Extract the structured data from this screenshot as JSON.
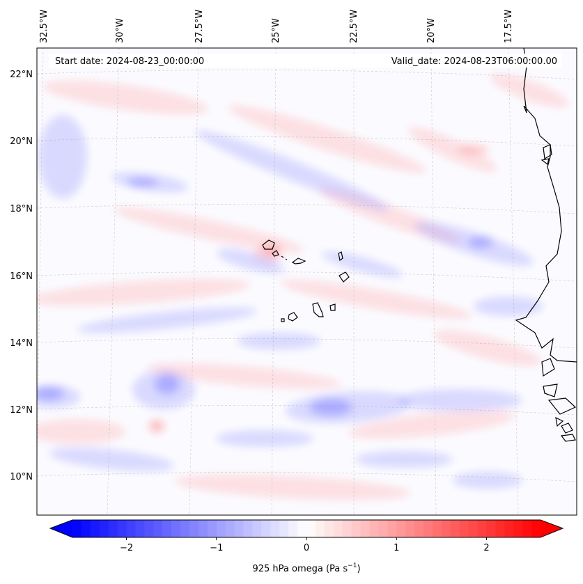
{
  "map": {
    "start_date": "Start date: 2024-08-23_00:00:00",
    "valid_date": "Valid_date: 2024-08-23T06:00:00.00",
    "lon_labels": [
      "32.5°W",
      "30°W",
      "27.5°W",
      "25°W",
      "22.5°W",
      "20°W",
      "17.5°W"
    ],
    "lat_labels": [
      "22°N",
      "20°N",
      "18°N",
      "16°N",
      "14°N",
      "12°N",
      "10°N"
    ],
    "field_colors": {
      "negative": "#0000ff",
      "zero": "#ffffff",
      "positive": "#ff0000"
    }
  },
  "colorbar": {
    "ticks": [
      "−2",
      "−1",
      "0",
      "1",
      "2"
    ],
    "tick_values": [
      -2,
      -1,
      0,
      1,
      2
    ],
    "range": [
      -2.6,
      2.6
    ],
    "label_main": "925 hPa omega (Pa s",
    "label_exp": "−1",
    "label_close": ")"
  }
}
